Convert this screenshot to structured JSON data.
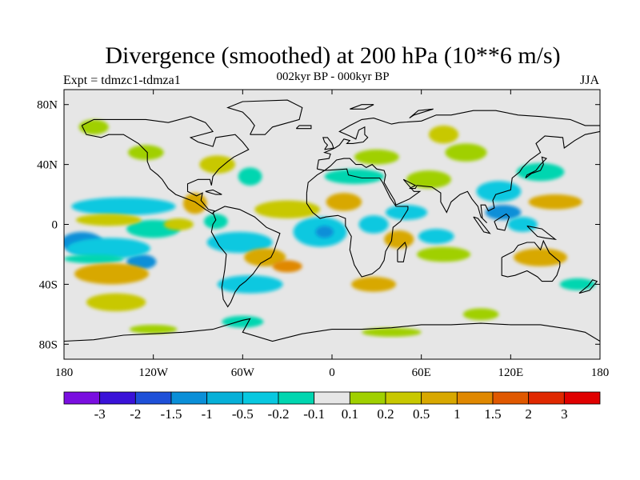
{
  "header": {
    "title": "Divergence (smoothed) at 200 hPa (10**6 m/s)",
    "experiment": "Expt = tdmzc1-tdmza1",
    "period": "002kyr BP - 000kyr BP",
    "season": "JJA"
  },
  "map": {
    "lon_range": [
      -180,
      180
    ],
    "lat_range": [
      -90,
      90
    ],
    "lon_ticks": [
      -180,
      -120,
      -60,
      0,
      60,
      120,
      180
    ],
    "lon_labels": [
      "180",
      "120W",
      "60W",
      "0",
      "60E",
      "120E",
      "180"
    ],
    "lat_ticks": [
      80,
      40,
      0,
      -40,
      -80
    ],
    "lat_labels": [
      "80N",
      "40N",
      "0",
      "40S",
      "80S"
    ],
    "background_color": "#e6e6e6",
    "field_blobs": [
      {
        "lon": -168,
        "lat": -12,
        "rlon": 14,
        "rlat": 7,
        "c": "#0a8fd8"
      },
      {
        "lon": -128,
        "lat": -25,
        "rlon": 10,
        "rlat": 5,
        "c": "#0a8fd8"
      },
      {
        "lon": -140,
        "lat": 12,
        "rlon": 35,
        "rlat": 6,
        "c": "#08c8e0"
      },
      {
        "lon": -150,
        "lat": -16,
        "rlon": 28,
        "rlat": 7,
        "c": "#08c8e0"
      },
      {
        "lon": -160,
        "lat": -23,
        "rlon": 20,
        "rlat": 3,
        "c": "#00d6b0"
      },
      {
        "lon": -120,
        "lat": -3,
        "rlon": 18,
        "rlat": 6,
        "c": "#00d6b0"
      },
      {
        "lon": -150,
        "lat": 3,
        "rlon": 22,
        "rlat": 4,
        "c": "#c8c800"
      },
      {
        "lon": -148,
        "lat": -33,
        "rlon": 25,
        "rlat": 7,
        "c": "#d8a800"
      },
      {
        "lon": -145,
        "lat": -52,
        "rlon": 20,
        "rlat": 6,
        "c": "#c8c800"
      },
      {
        "lon": -160,
        "lat": 65,
        "rlon": 10,
        "rlat": 5,
        "c": "#a0d000"
      },
      {
        "lon": -125,
        "lat": 48,
        "rlon": 12,
        "rlat": 5,
        "c": "#a0d000"
      },
      {
        "lon": -92,
        "lat": 14,
        "rlon": 8,
        "rlat": 7,
        "c": "#d8a800"
      },
      {
        "lon": -103,
        "lat": 0,
        "rlon": 10,
        "rlat": 4,
        "c": "#c8c800"
      },
      {
        "lon": -78,
        "lat": 2,
        "rlon": 8,
        "rlat": 5,
        "c": "#00d6b0"
      },
      {
        "lon": -77,
        "lat": 40,
        "rlon": 12,
        "rlat": 6,
        "c": "#c8c800"
      },
      {
        "lon": -55,
        "lat": 32,
        "rlon": 8,
        "rlat": 6,
        "c": "#00d6b0"
      },
      {
        "lon": -62,
        "lat": -12,
        "rlon": 22,
        "rlat": 7,
        "c": "#08c8e0"
      },
      {
        "lon": -45,
        "lat": -22,
        "rlon": 14,
        "rlat": 6,
        "c": "#d8a800"
      },
      {
        "lon": -30,
        "lat": -28,
        "rlon": 10,
        "rlat": 4,
        "c": "#e08800"
      },
      {
        "lon": -55,
        "lat": -40,
        "rlon": 22,
        "rlat": 6,
        "c": "#08c8e0"
      },
      {
        "lon": -60,
        "lat": -65,
        "rlon": 14,
        "rlat": 4,
        "c": "#00d6b0"
      },
      {
        "lon": -8,
        "lat": -5,
        "rlon": 18,
        "rlat": 10,
        "c": "#08c8e0"
      },
      {
        "lon": -5,
        "lat": -5,
        "rlon": 6,
        "rlat": 4,
        "c": "#0a8fd8"
      },
      {
        "lon": -30,
        "lat": 10,
        "rlon": 22,
        "rlat": 6,
        "c": "#c8c800"
      },
      {
        "lon": 8,
        "lat": 15,
        "rlon": 12,
        "rlat": 6,
        "c": "#d8a800"
      },
      {
        "lon": 15,
        "lat": 32,
        "rlon": 20,
        "rlat": 5,
        "c": "#00d6b0"
      },
      {
        "lon": 30,
        "lat": 45,
        "rlon": 15,
        "rlat": 5,
        "c": "#a0d000"
      },
      {
        "lon": 28,
        "lat": 0,
        "rlon": 10,
        "rlat": 6,
        "c": "#08c8e0"
      },
      {
        "lon": 45,
        "lat": -10,
        "rlon": 10,
        "rlat": 6,
        "c": "#d8a800"
      },
      {
        "lon": 28,
        "lat": -40,
        "rlon": 15,
        "rlat": 5,
        "c": "#d8a800"
      },
      {
        "lon": 50,
        "lat": 8,
        "rlon": 14,
        "rlat": 5,
        "c": "#08c8e0"
      },
      {
        "lon": 70,
        "lat": -8,
        "rlon": 12,
        "rlat": 5,
        "c": "#08c8e0"
      },
      {
        "lon": 75,
        "lat": -20,
        "rlon": 18,
        "rlat": 5,
        "c": "#a0d000"
      },
      {
        "lon": 65,
        "lat": 30,
        "rlon": 15,
        "rlat": 6,
        "c": "#a0d000"
      },
      {
        "lon": 90,
        "lat": 48,
        "rlon": 14,
        "rlat": 6,
        "c": "#a0d000"
      },
      {
        "lon": 75,
        "lat": 60,
        "rlon": 10,
        "rlat": 6,
        "c": "#c8c800"
      },
      {
        "lon": 112,
        "lat": 22,
        "rlon": 15,
        "rlat": 7,
        "c": "#08c8e0"
      },
      {
        "lon": 115,
        "lat": 8,
        "rlon": 12,
        "rlat": 5,
        "c": "#0a8fd8"
      },
      {
        "lon": 128,
        "lat": 0,
        "rlon": 10,
        "rlat": 5,
        "c": "#08c8e0"
      },
      {
        "lon": 140,
        "lat": 35,
        "rlon": 16,
        "rlat": 6,
        "c": "#00d6b0"
      },
      {
        "lon": 150,
        "lat": 15,
        "rlon": 18,
        "rlat": 5,
        "c": "#d8a800"
      },
      {
        "lon": 140,
        "lat": -22,
        "rlon": 18,
        "rlat": 6,
        "c": "#d8a800"
      },
      {
        "lon": 165,
        "lat": -40,
        "rlon": 12,
        "rlat": 4,
        "c": "#00d6b0"
      },
      {
        "lon": 100,
        "lat": -60,
        "rlon": 12,
        "rlat": 4,
        "c": "#a0d000"
      },
      {
        "lon": -120,
        "lat": -70,
        "rlon": 16,
        "rlat": 3,
        "c": "#a0d000"
      },
      {
        "lon": 40,
        "lat": -72,
        "rlon": 20,
        "rlat": 3,
        "c": "#a0d000"
      }
    ]
  },
  "colorbar": {
    "colors": [
      "#7a0ee0",
      "#3a12d8",
      "#1e50d8",
      "#0a8fd8",
      "#06b0d8",
      "#08c8e0",
      "#00d6b0",
      "#e6e6e6",
      "#a0d000",
      "#c8c800",
      "#d8a800",
      "#e08800",
      "#e05800",
      "#e02800",
      "#e00000"
    ],
    "labels": [
      "-3",
      "-2",
      "-1.5",
      "-1",
      "-0.5",
      "-0.2",
      "-0.1",
      "0.1",
      "0.2",
      "0.5",
      "1",
      "1.5",
      "2",
      "3"
    ]
  }
}
